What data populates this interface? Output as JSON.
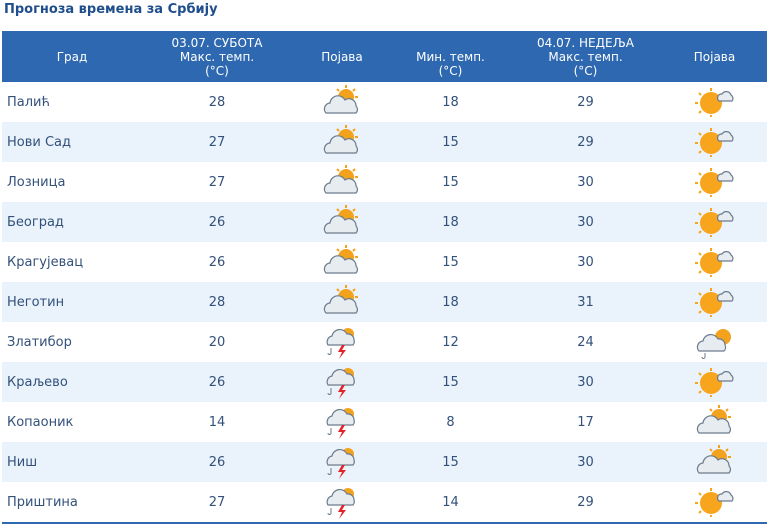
{
  "page_title": "Прогноза времена за Србију",
  "header": {
    "city_col": "Град",
    "day1": {
      "date": "03.07. СУБОТА",
      "max_label": "Макс. темп.",
      "max_unit": "(°C)",
      "phen_label": "Појава"
    },
    "day2": {
      "date": "04.07. НЕДЕЉА",
      "min_label": "Мин. темп.",
      "min_unit": "(°C)",
      "max_label": "Макс. темп.",
      "max_unit": "(°C)",
      "phen_label": "Појава"
    }
  },
  "colors": {
    "header_bg": "#2d68b0",
    "title": "#1f4e8c",
    "row_alt": "#eaf3fc",
    "text": "#33517a"
  },
  "rows": [
    {
      "city": "Палић",
      "d1_max": "28",
      "d1_icon": "partly-cloudy-icon",
      "d2_min": "18",
      "d2_max": "29",
      "d2_icon": "sun-cloud-icon"
    },
    {
      "city": "Нови Сад",
      "d1_max": "27",
      "d1_icon": "partly-cloudy-icon",
      "d2_min": "15",
      "d2_max": "29",
      "d2_icon": "sun-cloud-icon"
    },
    {
      "city": "Лозница",
      "d1_max": "27",
      "d1_icon": "partly-cloudy-icon",
      "d2_min": "15",
      "d2_max": "30",
      "d2_icon": "sun-cloud-icon"
    },
    {
      "city": "Београд",
      "d1_max": "26",
      "d1_icon": "partly-cloudy-icon",
      "d2_min": "18",
      "d2_max": "30",
      "d2_icon": "sun-cloud-icon"
    },
    {
      "city": "Крагујевац",
      "d1_max": "26",
      "d1_icon": "partly-cloudy-icon",
      "d2_min": "15",
      "d2_max": "30",
      "d2_icon": "sun-cloud-icon"
    },
    {
      "city": "Неготин",
      "d1_max": "28",
      "d1_icon": "partly-cloudy-icon",
      "d2_min": "18",
      "d2_max": "31",
      "d2_icon": "sun-cloud-icon"
    },
    {
      "city": "Златибор",
      "d1_max": "20",
      "d1_icon": "thunderstorm-icon",
      "d2_min": "12",
      "d2_max": "24",
      "d2_icon": "cloud-sun-shower-icon"
    },
    {
      "city": "Краљево",
      "d1_max": "26",
      "d1_icon": "thunderstorm-icon",
      "d2_min": "15",
      "d2_max": "30",
      "d2_icon": "sun-cloud-icon"
    },
    {
      "city": "Копаоник",
      "d1_max": "14",
      "d1_icon": "thunderstorm-icon",
      "d2_min": "8",
      "d2_max": "17",
      "d2_icon": "partly-cloudy-icon"
    },
    {
      "city": "Ниш",
      "d1_max": "26",
      "d1_icon": "thunderstorm-icon",
      "d2_min": "15",
      "d2_max": "30",
      "d2_icon": "partly-cloudy-icon"
    },
    {
      "city": "Приштина",
      "d1_max": "27",
      "d1_icon": "thunderstorm-icon",
      "d2_min": "14",
      "d2_max": "29",
      "d2_icon": "sun-cloud-icon"
    }
  ]
}
